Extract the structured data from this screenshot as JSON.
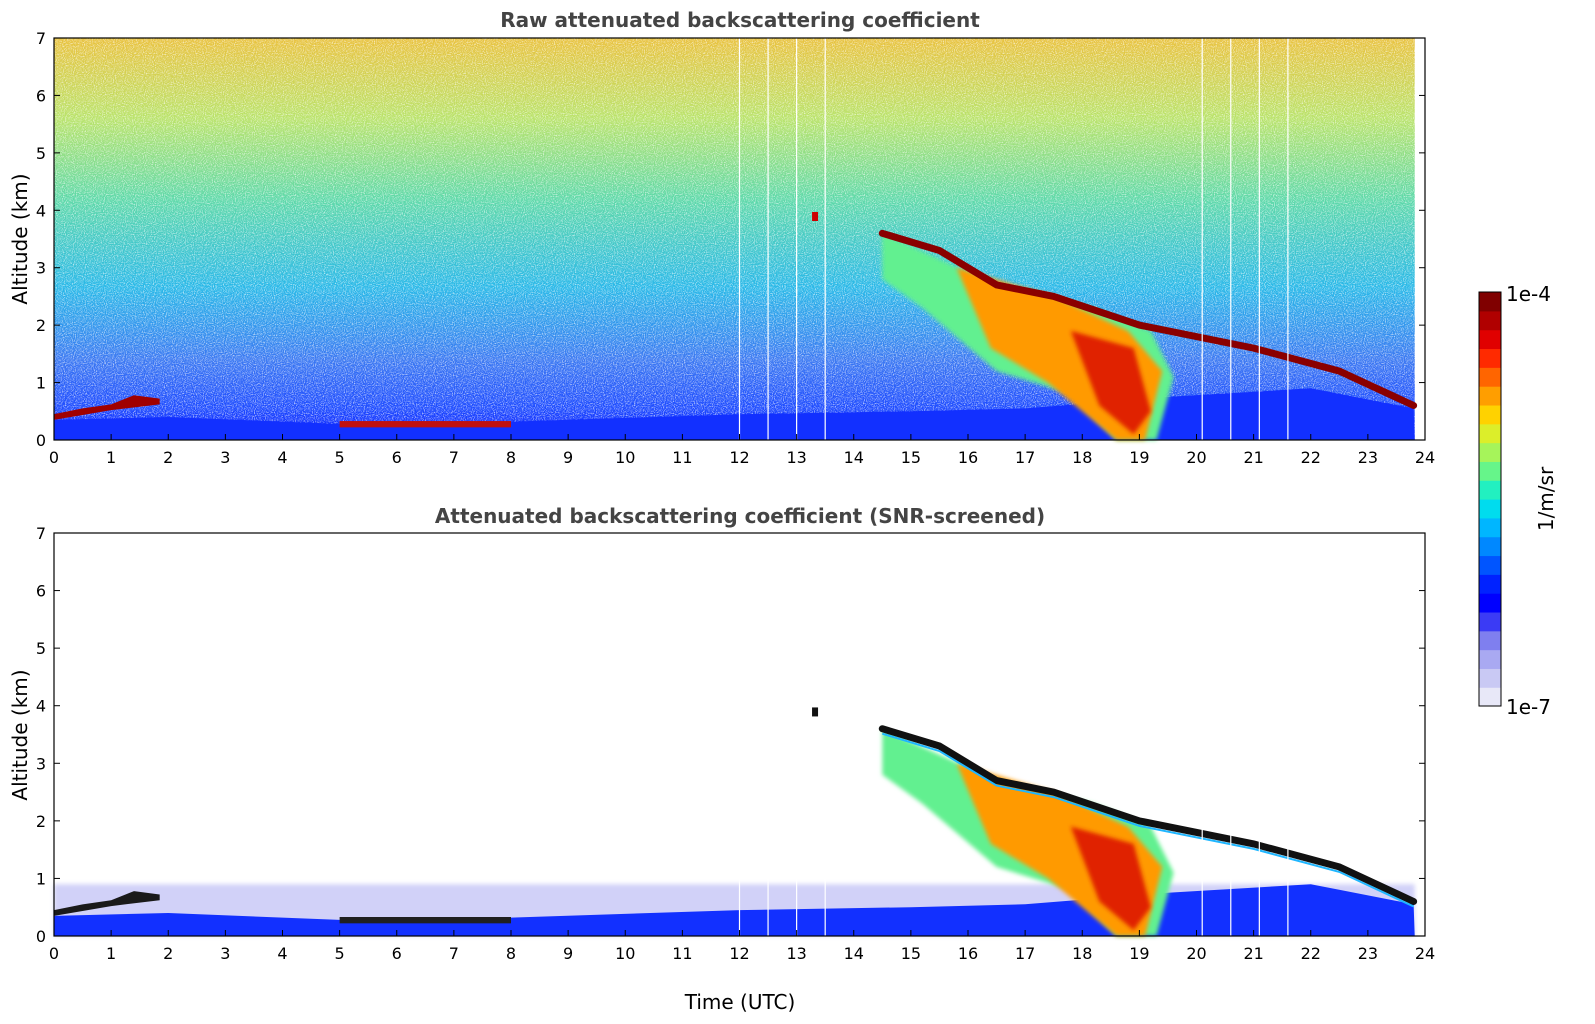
{
  "figure": {
    "colorbar": {
      "label": "1/m/sr",
      "top_label": "1e-4",
      "bottom_label": "1e-7",
      "colors": [
        "#e8e8f8",
        "#c9c9f4",
        "#a9a9f2",
        "#7f7fef",
        "#3b3bf5",
        "#0000ff",
        "#0022ff",
        "#0055ff",
        "#0088ff",
        "#00b6ff",
        "#00dcee",
        "#22f0c0",
        "#66f58a",
        "#a6f45a",
        "#dcee2a",
        "#ffd200",
        "#ff9e00",
        "#ff6500",
        "#ff2a00",
        "#e00000",
        "#b00000",
        "#800000"
      ]
    }
  },
  "chart_data": [
    {
      "type": "heatmap",
      "title": "Raw attenuated backscattering coefficient",
      "xlabel": "",
      "ylabel": "Altitude (km)",
      "xlim": [
        0,
        24
      ],
      "ylim": [
        0,
        7
      ],
      "x_ticks": [
        "0",
        "1",
        "2",
        "3",
        "4",
        "5",
        "6",
        "7",
        "8",
        "9",
        "10",
        "11",
        "12",
        "13",
        "14",
        "15",
        "16",
        "17",
        "18",
        "19",
        "20",
        "21",
        "22",
        "23",
        "24"
      ],
      "y_ticks": [
        "0",
        "1",
        "2",
        "3",
        "4",
        "5",
        "6",
        "7"
      ],
      "color_scale": "log",
      "color_range": [
        1e-07,
        0.0001
      ],
      "data_gaps_utc": [
        12.0,
        12.5,
        13.0,
        13.5,
        20.1,
        20.6,
        21.1,
        21.6
      ],
      "cloud_layer_height_km": [
        {
          "time": 0.0,
          "altitude": 0.55
        },
        {
          "time": 0.5,
          "altitude": 0.62
        },
        {
          "time": 1.0,
          "altitude": 0.68
        },
        {
          "time": 1.8,
          "altitude": 0.75
        },
        {
          "time": 14.5,
          "altitude": 3.6
        },
        {
          "time": 15.5,
          "altitude": 3.3
        },
        {
          "time": 16.5,
          "altitude": 2.7
        },
        {
          "time": 17.5,
          "altitude": 2.5
        },
        {
          "time": 19.0,
          "altitude": 2.0
        },
        {
          "time": 21.0,
          "altitude": 1.6
        },
        {
          "time": 22.5,
          "altitude": 1.2
        },
        {
          "time": 23.8,
          "altitude": 0.6
        }
      ]
    },
    {
      "type": "heatmap",
      "title": "Attenuated backscattering coefficient (SNR-screened)",
      "xlabel": "Time (UTC)",
      "ylabel": "Altitude (km)",
      "xlim": [
        0,
        24
      ],
      "ylim": [
        0,
        7
      ],
      "x_ticks": [
        "0",
        "1",
        "2",
        "3",
        "4",
        "5",
        "6",
        "7",
        "8",
        "9",
        "10",
        "11",
        "12",
        "13",
        "14",
        "15",
        "16",
        "17",
        "18",
        "19",
        "20",
        "21",
        "22",
        "23",
        "24"
      ],
      "y_ticks": [
        "0",
        "1",
        "2",
        "3",
        "4",
        "5",
        "6",
        "7"
      ],
      "color_scale": "log",
      "color_range": [
        1e-07,
        0.0001
      ],
      "data_gaps_utc": [
        12.0,
        12.5,
        13.0,
        13.5,
        20.1,
        20.6,
        21.1,
        21.6
      ]
    }
  ]
}
